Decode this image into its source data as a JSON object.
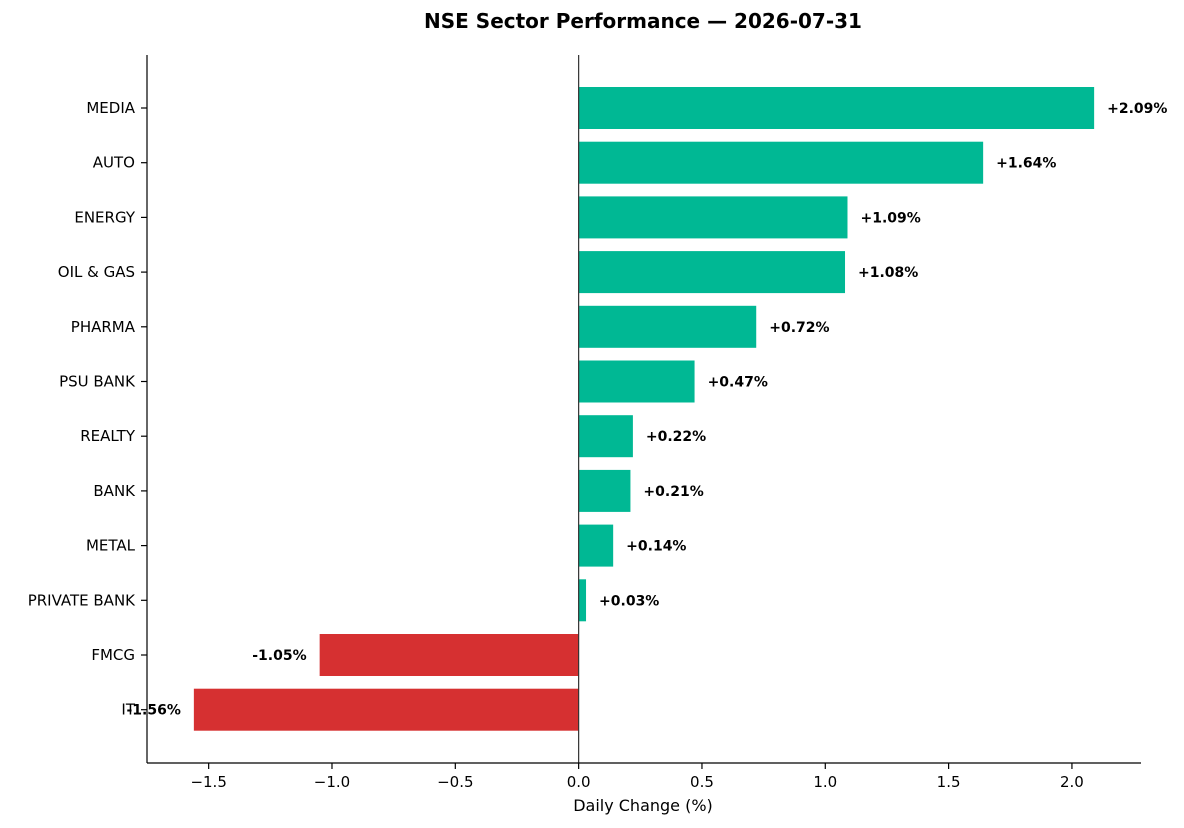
{
  "chart_data": {
    "type": "bar",
    "orientation": "horizontal",
    "title": "NSE Sector Performance — 2026-07-31",
    "xlabel": "Daily Change (%)",
    "ylabel": "",
    "xlim": [
      -1.75,
      2.28
    ],
    "xticks": [
      -1.5,
      -1.0,
      -0.5,
      0.0,
      0.5,
      1.0,
      1.5,
      2.0
    ],
    "xtick_labels": [
      "−1.5",
      "−1.0",
      "−0.5",
      "0.0",
      "0.5",
      "1.0",
      "1.5",
      "2.0"
    ],
    "categories": [
      "MEDIA",
      "AUTO",
      "ENERGY",
      "OIL & GAS",
      "PHARMA",
      "PSU BANK",
      "REALTY",
      "BANK",
      "METAL",
      "PRIVATE BANK",
      "FMCG",
      "IT"
    ],
    "values": [
      2.09,
      1.64,
      1.09,
      1.08,
      0.72,
      0.47,
      0.22,
      0.21,
      0.14,
      0.03,
      -1.05,
      -1.56
    ],
    "value_labels": [
      "+2.09%",
      "+1.64%",
      "+1.09%",
      "+1.08%",
      "+0.72%",
      "+0.47%",
      "+0.22%",
      "+0.21%",
      "+0.14%",
      "+0.03%",
      "-1.05%",
      "-1.56%"
    ],
    "colors": {
      "positive": "#00b894",
      "negative": "#d63031"
    },
    "grid": false,
    "legend": "none"
  }
}
